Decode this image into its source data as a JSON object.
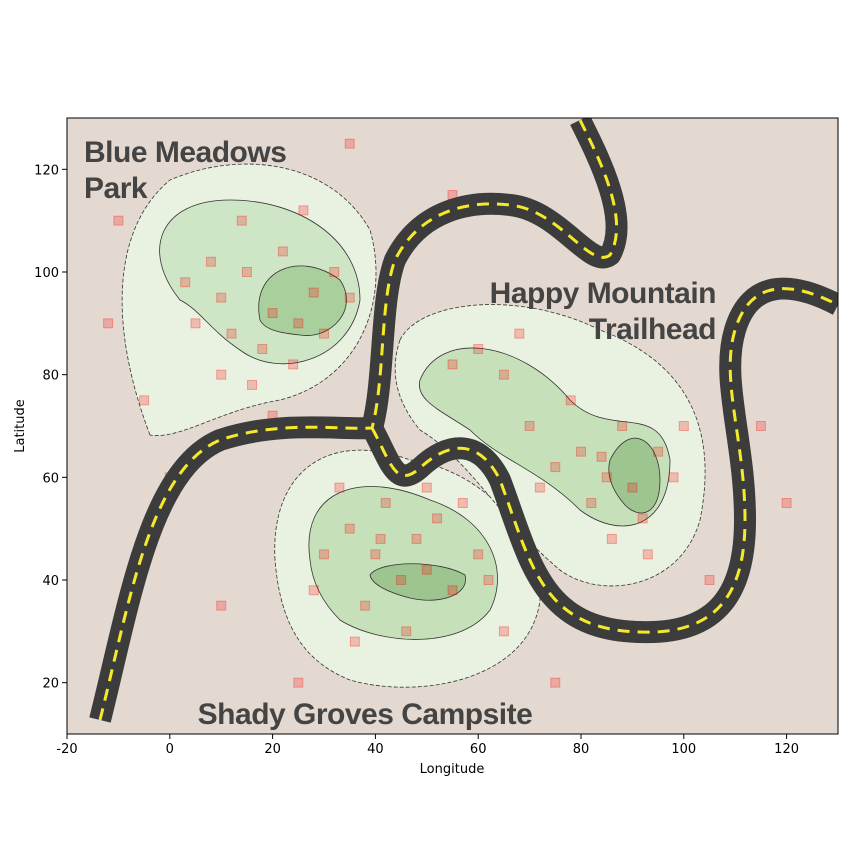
{
  "chart_data": {
    "type": "scatter",
    "xlabel": "Longitude",
    "ylabel": "Latitude",
    "xlim": [
      -20,
      130
    ],
    "ylim": [
      10,
      130
    ],
    "xticks": [
      -20,
      0,
      20,
      40,
      60,
      80,
      100,
      120
    ],
    "yticks": [
      20,
      40,
      60,
      80,
      100,
      120
    ],
    "annotations": [
      {
        "lines": [
          "Blue Meadows",
          "Park"
        ]
      },
      {
        "lines": [
          "Happy Mountain",
          "Trailhead"
        ]
      },
      {
        "lines": [
          "Shady Groves Campsite"
        ]
      }
    ],
    "series": [
      {
        "color": "#ff0000",
        "x": [
          10,
          15,
          20,
          25,
          18,
          12,
          28,
          22,
          8,
          30,
          5,
          16,
          24,
          32,
          14,
          26,
          35,
          3,
          20,
          10,
          40,
          45,
          50,
          35,
          42,
          55,
          48,
          30,
          38,
          52,
          60,
          33,
          46,
          57,
          28,
          44,
          62,
          36,
          50,
          41,
          85,
          90,
          80,
          88,
          92,
          75,
          95,
          82,
          70,
          65,
          60,
          55,
          78,
          98,
          86,
          72,
          100,
          68,
          93,
          84,
          -10,
          120,
          105,
          0,
          75,
          -5,
          110,
          55,
          35,
          10,
          65,
          115,
          -12,
          25
        ],
        "y": [
          95,
          100,
          92,
          90,
          85,
          88,
          96,
          104,
          102,
          88,
          90,
          78,
          82,
          100,
          110,
          112,
          95,
          98,
          72,
          80,
          45,
          40,
          42,
          50,
          55,
          38,
          48,
          45,
          35,
          52,
          45,
          58,
          30,
          55,
          38,
          62,
          40,
          28,
          58,
          48,
          60,
          58,
          65,
          70,
          52,
          62,
          65,
          55,
          70,
          80,
          85,
          82,
          75,
          60,
          48,
          58,
          70,
          88,
          45,
          64,
          110,
          55,
          40,
          60,
          20,
          75,
          90,
          115,
          125,
          35,
          30,
          70,
          90,
          20
        ]
      }
    ]
  }
}
